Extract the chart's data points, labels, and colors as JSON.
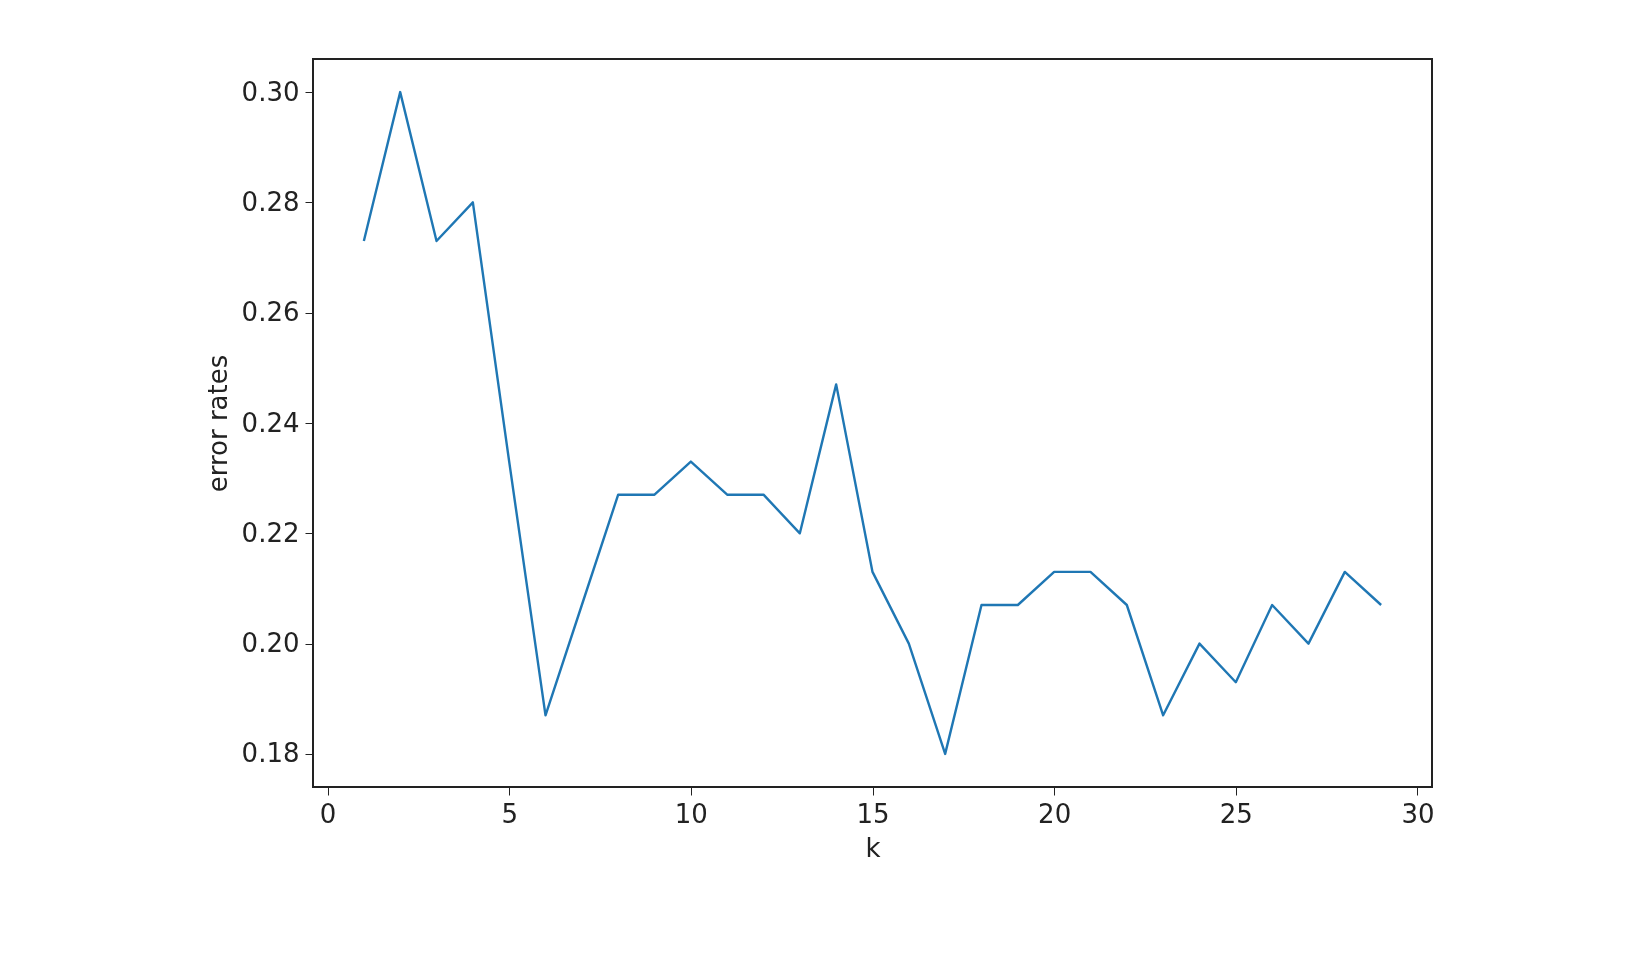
{
  "chart_data": {
    "type": "line",
    "xlabel": "k",
    "ylabel": "error rates",
    "x": [
      1,
      2,
      3,
      4,
      5,
      6,
      7,
      8,
      9,
      10,
      11,
      12,
      13,
      14,
      15,
      16,
      17,
      18,
      19,
      20,
      21,
      22,
      23,
      24,
      25,
      26,
      27,
      28,
      29
    ],
    "series": [
      {
        "color": "#1f77b4",
        "values": [
          0.273,
          0.3,
          0.273,
          0.28,
          0.233,
          0.187,
          0.207,
          0.227,
          0.227,
          0.233,
          0.227,
          0.227,
          0.22,
          0.247,
          0.213,
          0.2,
          0.18,
          0.207,
          0.207,
          0.213,
          0.213,
          0.207,
          0.187,
          0.2,
          0.193,
          0.207,
          0.2,
          0.213,
          0.207
        ]
      }
    ],
    "xlim": [
      -0.4,
      30.4
    ],
    "xticks": [
      0,
      5,
      10,
      15,
      20,
      25,
      30
    ],
    "ylim": [
      0.174,
      0.306
    ],
    "yticks": [
      0.18,
      {
        "value": 0.2,
        "label": "0.20"
      },
      0.22,
      0.24,
      0.26,
      0.28,
      {
        "value": 0.3,
        "label": "0.30"
      }
    ],
    "grid": false
  }
}
